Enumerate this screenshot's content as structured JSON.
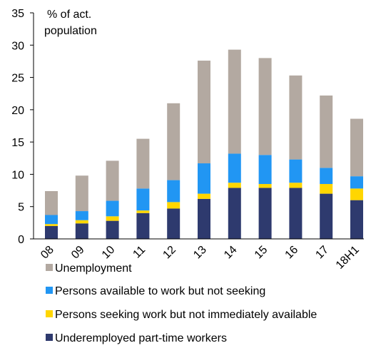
{
  "chart_data": {
    "type": "bar",
    "stacked": true,
    "categories": [
      "08",
      "09",
      "10",
      "11",
      "12",
      "13",
      "14",
      "15",
      "16",
      "17",
      "18H1"
    ],
    "ylabel": [
      "% of act.",
      "population"
    ],
    "ylim": [
      0,
      35
    ],
    "yticks": [
      0,
      5,
      10,
      15,
      20,
      25,
      30,
      35
    ],
    "grid": false,
    "legend_placement": "bottom",
    "series": [
      {
        "name": "Underemployed part-time workers",
        "color": "#2e3a6e",
        "values": [
          2.0,
          2.4,
          2.8,
          4.0,
          4.7,
          6.2,
          7.9,
          7.9,
          7.9,
          7.0,
          6.0
        ]
      },
      {
        "name": "Persons seeking work but not immediately available",
        "color": "#ffd600",
        "values": [
          0.3,
          0.5,
          0.7,
          0.4,
          1.0,
          0.8,
          0.8,
          0.6,
          0.8,
          1.5,
          1.8
        ]
      },
      {
        "name": "Persons available to work but not seeking",
        "color": "#2196f3",
        "values": [
          1.4,
          1.4,
          2.4,
          3.4,
          3.4,
          4.7,
          4.5,
          4.5,
          3.6,
          2.5,
          1.9
        ]
      },
      {
        "name": "Unemployment",
        "color": "#b3a9a1",
        "values": [
          3.7,
          5.5,
          6.2,
          7.7,
          11.9,
          15.9,
          16.1,
          15.0,
          13.0,
          11.2,
          8.9
        ]
      }
    ],
    "legend_order": [
      3,
      2,
      1,
      0
    ]
  }
}
